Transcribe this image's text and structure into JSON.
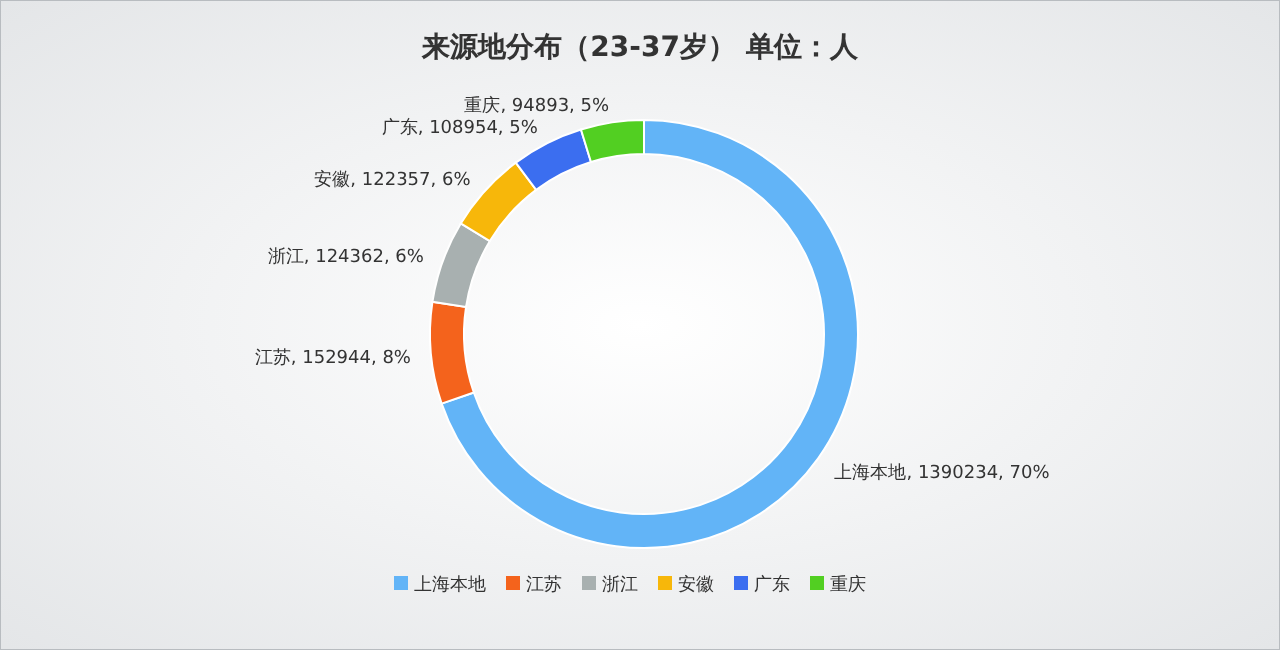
{
  "chart_data": {
    "type": "donut",
    "title": "来源地分布（23-37岁） 单位：人",
    "categories": [
      "上海本地",
      "江苏",
      "浙江",
      "安徽",
      "广东",
      "重庆"
    ],
    "values": [
      1390234,
      152944,
      124362,
      122357,
      108954,
      94893
    ],
    "value_labels": [
      "上海本地, 1390234, 70%",
      "江苏, 152944, 8%",
      "浙江, 124362, 6%",
      "安徽, 122357, 6%",
      "广东, 108954, 5%",
      "重庆, 94893, 5%"
    ],
    "colors": [
      "#62b4f7",
      "#f4631c",
      "#a8b0b0",
      "#f7b70a",
      "#3b6ef0",
      "#52cf22"
    ],
    "legend": "bottom"
  }
}
